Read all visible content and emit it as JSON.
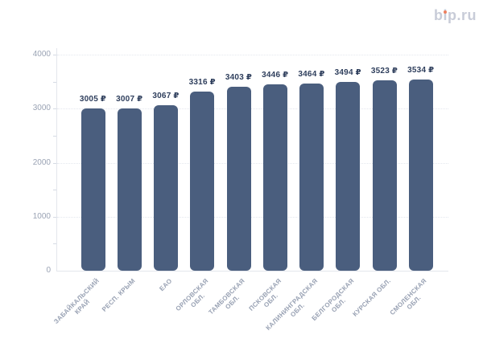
{
  "logo": {
    "text": "bip.ru",
    "text_color": "#c8ccd8",
    "dot_color": "#ee7f5e"
  },
  "chart_data": {
    "type": "bar",
    "title": "",
    "xlabel": "",
    "ylabel": "",
    "categories": [
      "ЗАБАЙКАЛЬСКИЙ КРАЙ",
      "РЕСП. КРЫМ",
      "ЕАО",
      "ОРЛОВСКАЯ ОБЛ.",
      "ТАМБОВСКАЯ ОБЛ.",
      "ПСКОВСКАЯ ОБЛ.",
      "КАЛИНИНГРАДСКАЯ ОБЛ.",
      "БЕЛГОРОДСКАЯ ОБЛ.",
      "КУРСКАЯ ОБЛ.",
      "СМОЛЕНСКАЯ ОБЛ."
    ],
    "categories_lines": [
      [
        "ЗАБАЙКАЛЬСКИЙ",
        "КРАЙ"
      ],
      [
        "РЕСП. КРЫМ"
      ],
      [
        "ЕАО"
      ],
      [
        "ОРЛОВСКАЯ",
        "ОБЛ."
      ],
      [
        "ТАМБОВСКАЯ",
        "ОБЛ."
      ],
      [
        "ПСКОВСКАЯ",
        "ОБЛ."
      ],
      [
        "КАЛИНИНГРАДСКАЯ",
        "ОБЛ."
      ],
      [
        "БЕЛГОРОДСКАЯ",
        "ОБЛ."
      ],
      [
        "КУРСКАЯ ОБЛ."
      ],
      [
        "СМОЛЕНСКАЯ",
        "ОБЛ."
      ]
    ],
    "values": [
      3005,
      3007,
      3067,
      3316,
      3403,
      3446,
      3464,
      3494,
      3523,
      3534
    ],
    "value_labels": [
      "3005 ₽",
      "3007 ₽",
      "3067 ₽",
      "3316 ₽",
      "3403 ₽",
      "3446 ₽",
      "3464 ₽",
      "3494 ₽",
      "3523 ₽",
      "3534 ₽"
    ],
    "currency_symbol": "₽",
    "ylim": [
      0,
      4000
    ],
    "yticks_major": [
      0,
      1000,
      2000,
      3000,
      4000
    ],
    "yticks_minor": [
      500,
      1500,
      2500,
      3500
    ],
    "grid": "horizontal dotted lines at major y ticks",
    "legend": "none",
    "colors": {
      "bar": "#4a5e7e",
      "value_label": "#2e3e5c",
      "axis_text": "#9aa3b4",
      "category_text": "#98a1b3",
      "gridline": "#e4e7ee",
      "axis_line": "#e3e6ec",
      "background": "#ffffff"
    }
  }
}
